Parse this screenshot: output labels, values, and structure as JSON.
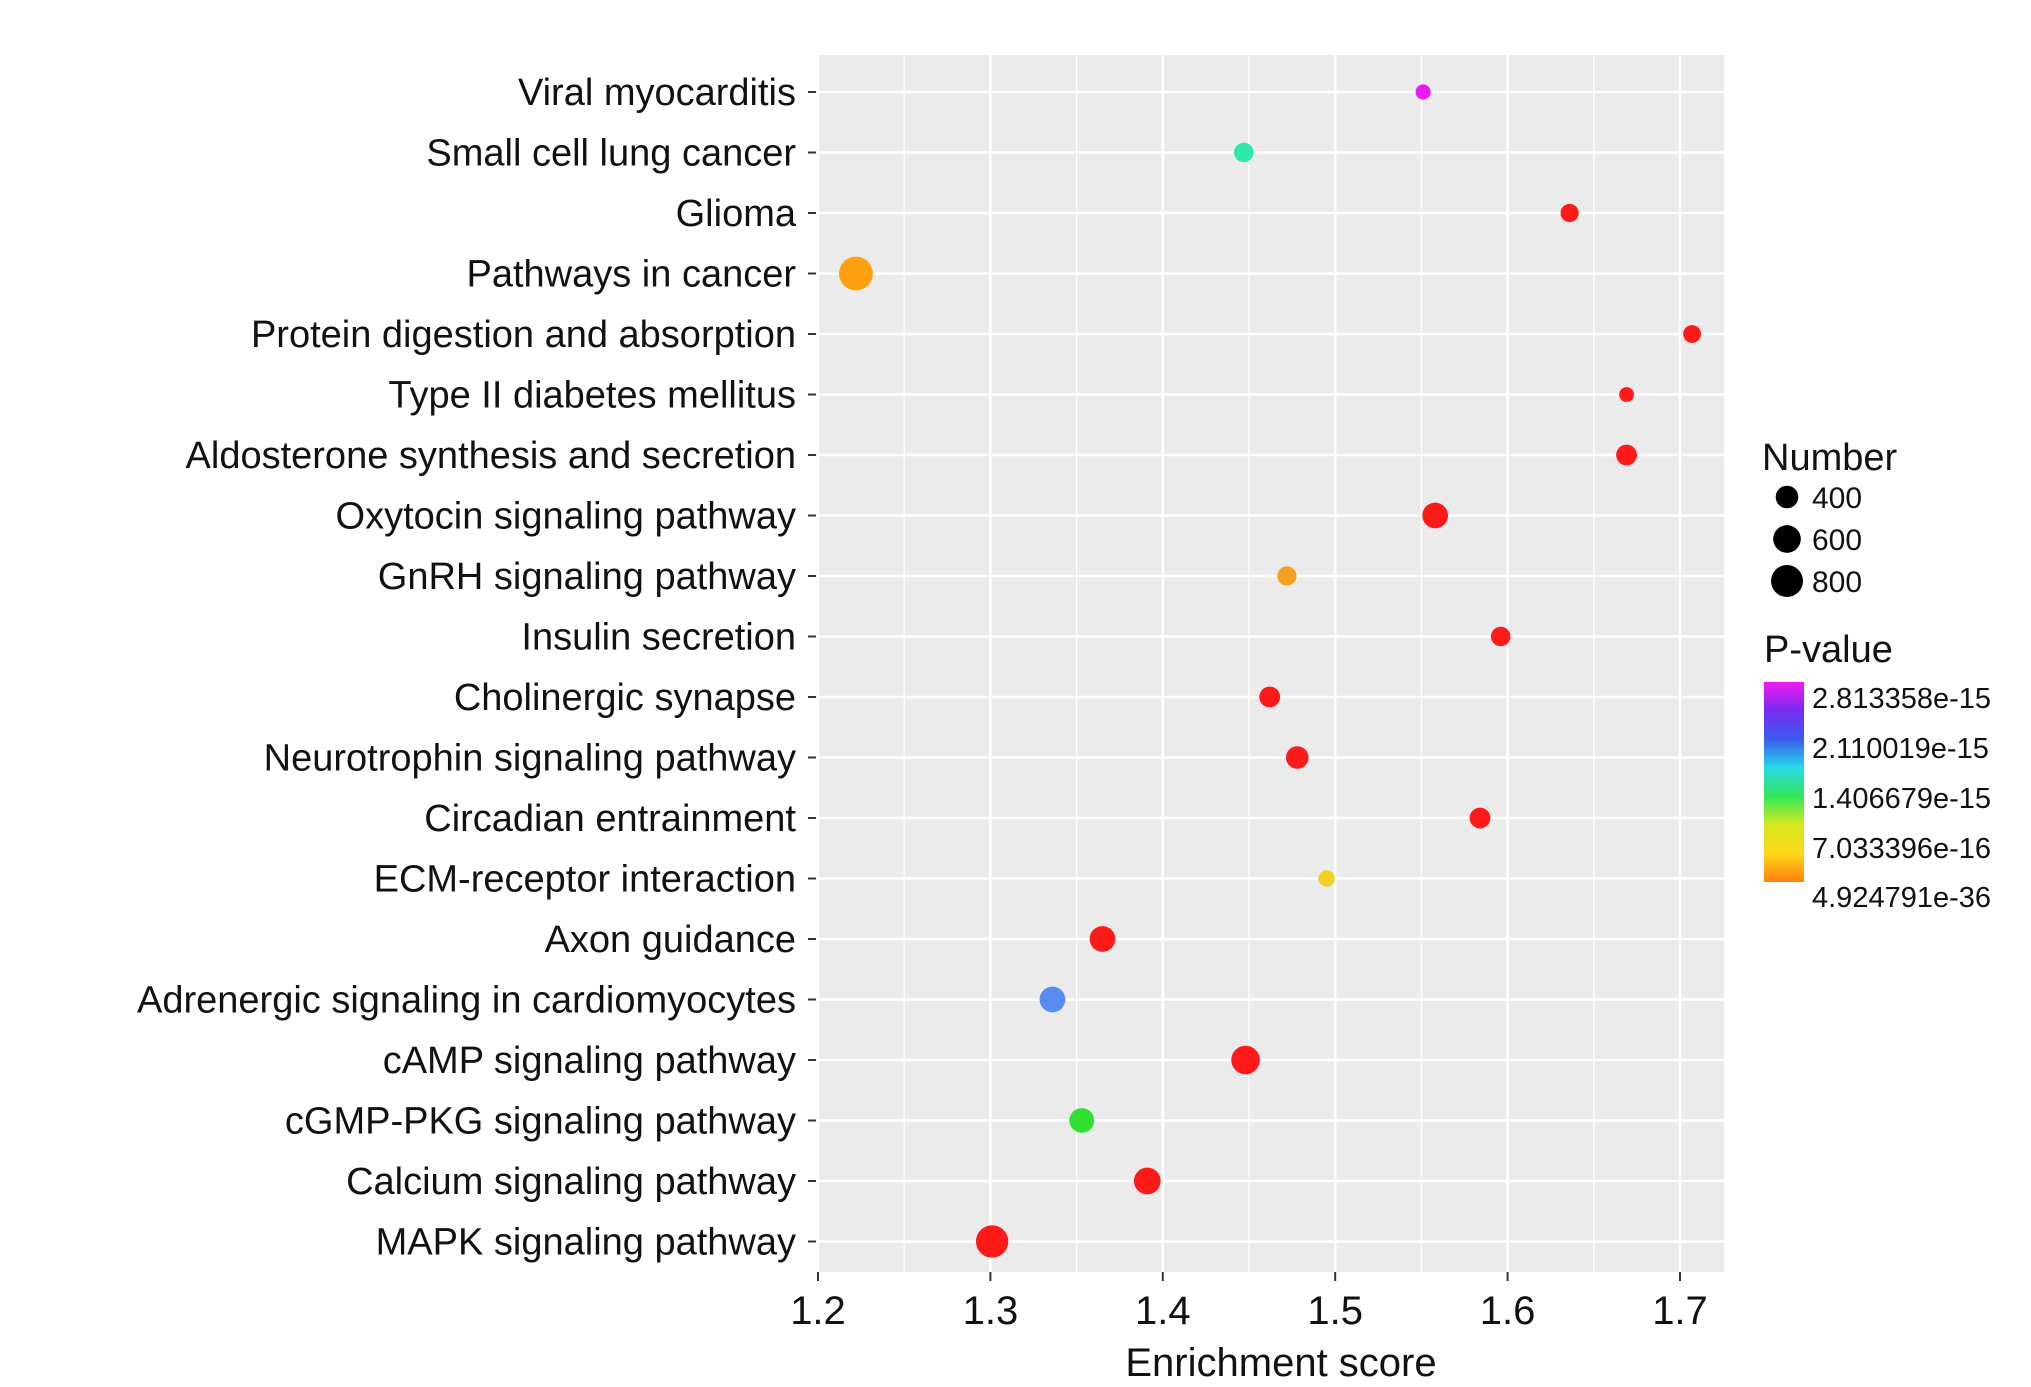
{
  "chart_data": {
    "type": "scatter",
    "xlabel": "Enrichment score",
    "ylabel": "",
    "xlim": [
      1.2,
      1.73
    ],
    "x_ticks": [
      1.2,
      1.3,
      1.4,
      1.5,
      1.6,
      1.7
    ],
    "x_tick_labels": [
      "1.2",
      "1.3",
      "1.4",
      "1.5",
      "1.6",
      "1.7"
    ],
    "grid": true,
    "categories": [
      "Viral myocarditis",
      "Small cell lung cancer",
      "Glioma",
      "Pathways in cancer",
      "Protein digestion and absorption",
      "Type II diabetes mellitus",
      "Aldosterone synthesis and secretion",
      "Oxytocin signaling pathway",
      "GnRH signaling pathway",
      "Insulin secretion",
      "Cholinergic synapse",
      "Neurotrophin signaling pathway",
      "Circadian entrainment",
      "ECM-receptor interaction",
      "Axon guidance",
      "Adrenergic signaling in cardiomyocytes",
      "cAMP signaling pathway",
      "cGMP-PKG signaling pathway",
      "Calcium signaling pathway",
      "MAPK signaling pathway"
    ],
    "points": [
      {
        "term": "Viral myocarditis",
        "x": 1.551,
        "number": 180,
        "color": "#e81cf0"
      },
      {
        "term": "Small cell lung cancer",
        "x": 1.447,
        "number": 300,
        "color": "#2ee8a8"
      },
      {
        "term": "Glioma",
        "x": 1.636,
        "number": 260,
        "color": "#ff1a1a"
      },
      {
        "term": "Pathways in cancer",
        "x": 1.222,
        "number": 900,
        "color": "#ffa010"
      },
      {
        "term": "Protein digestion and absorption",
        "x": 1.707,
        "number": 250,
        "color": "#ff1a1a"
      },
      {
        "term": "Type II diabetes mellitus",
        "x": 1.669,
        "number": 170,
        "color": "#ff1a1a"
      },
      {
        "term": "Aldosterone synthesis and secretion",
        "x": 1.669,
        "number": 340,
        "color": "#ff1a1a"
      },
      {
        "term": "Oxytocin signaling pathway",
        "x": 1.558,
        "number": 520,
        "color": "#ff1a1a"
      },
      {
        "term": "GnRH signaling pathway",
        "x": 1.472,
        "number": 290,
        "color": "#f5a020"
      },
      {
        "term": "Insulin secretion",
        "x": 1.596,
        "number": 300,
        "color": "#ff1a1a"
      },
      {
        "term": "Cholinergic synapse",
        "x": 1.462,
        "number": 340,
        "color": "#ff1a1a"
      },
      {
        "term": "Neurotrophin signaling pathway",
        "x": 1.478,
        "number": 400,
        "color": "#ff1a1a"
      },
      {
        "term": "Circadian entrainment",
        "x": 1.584,
        "number": 340,
        "color": "#ff1a1a"
      },
      {
        "term": "ECM-receptor interaction",
        "x": 1.495,
        "number": 210,
        "color": "#f5d020"
      },
      {
        "term": "Axon guidance",
        "x": 1.365,
        "number": 520,
        "color": "#ff1a1a"
      },
      {
        "term": "Adrenergic signaling in cardiomyocytes",
        "x": 1.336,
        "number": 520,
        "color": "#5a8cf0"
      },
      {
        "term": "cAMP signaling pathway",
        "x": 1.448,
        "number": 640,
        "color": "#ff1a1a"
      },
      {
        "term": "cGMP-PKG signaling pathway",
        "x": 1.353,
        "number": 480,
        "color": "#30e030"
      },
      {
        "term": "Calcium signaling pathway",
        "x": 1.391,
        "number": 560,
        "color": "#ff1a1a"
      },
      {
        "term": "MAPK signaling pathway",
        "x": 1.301,
        "number": 820,
        "color": "#ff1a1a"
      }
    ],
    "size_legend": {
      "title": "Number",
      "entries": [
        {
          "value": 400,
          "label": "400"
        },
        {
          "value": 600,
          "label": "600"
        },
        {
          "value": 800,
          "label": "800"
        }
      ]
    },
    "color_legend": {
      "title": "P-value",
      "labels": [
        "2.813358e-15",
        "2.110019e-15",
        "1.406679e-15",
        "7.033396e-16",
        "4.924791e-36"
      ],
      "gradient_colors": [
        "#f01cf0",
        "#7a2af0",
        "#3a5cf0",
        "#28d8e8",
        "#30e858",
        "#d8e820",
        "#ffd818",
        "#ff8010"
      ]
    },
    "panel_background": "#ebebeb",
    "grid_color": "#ffffff"
  }
}
